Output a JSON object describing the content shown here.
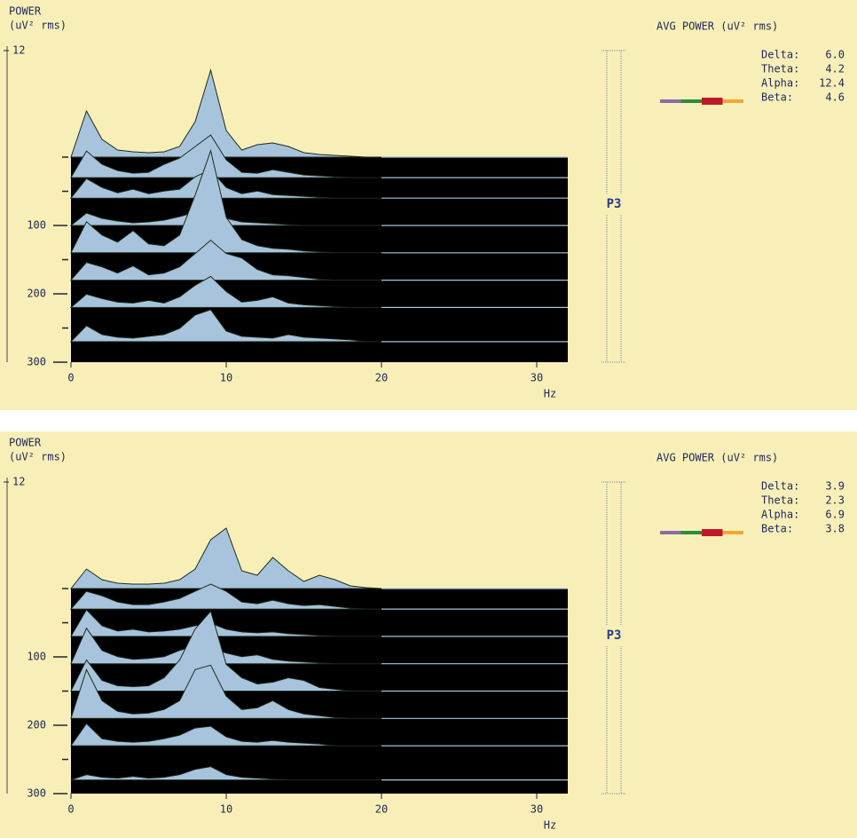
{
  "chart_data": [
    {
      "type": "waterfall",
      "zlabel": "POWER",
      "zunit": "(uV² rms)",
      "xlabel": "Hz",
      "channel": "P3",
      "legend_title": "AVG POWER (uV² rms)",
      "bands": {
        "names": [
          "Delta:",
          "Theta:",
          "Alpha:",
          "Beta:"
        ],
        "values": [
          6.0,
          4.2,
          12.4,
          4.6
        ],
        "value_labels": [
          "6.0",
          "4.2",
          "12.4",
          "4.6"
        ],
        "colors": [
          "#8a6aa8",
          "#2e8b3a",
          "#c0182a",
          "#f0a830"
        ]
      },
      "xlim": [
        0,
        32
      ],
      "xticks": [
        0,
        10,
        20,
        30
      ],
      "ylim": [
        0,
        300
      ],
      "yticks": [
        100,
        200,
        300
      ],
      "minor_yticks": [
        0,
        50,
        150,
        250
      ],
      "zticks": [
        12
      ],
      "color": "#a8c4dc",
      "background": "#000000",
      "x": [
        0,
        1,
        2,
        3,
        4,
        5,
        6,
        7,
        8,
        9,
        10,
        11,
        12,
        13,
        14,
        15,
        16,
        17,
        18,
        19,
        20
      ],
      "series": [
        {
          "time": 0,
          "values": [
            0,
            5.2,
            2.0,
            0.8,
            0.6,
            0.5,
            0.6,
            1.2,
            4.0,
            9.8,
            3.0,
            0.8,
            1.4,
            1.6,
            1.2,
            0.5,
            0.3,
            0.2,
            0.1,
            0,
            0
          ]
        },
        {
          "time": 30,
          "values": [
            0,
            3.0,
            1.5,
            0.8,
            0.5,
            0.6,
            1.5,
            2.2,
            3.5,
            4.8,
            2.0,
            0.6,
            0.5,
            0.9,
            0.6,
            0.3,
            0.2,
            0.1,
            0,
            0,
            0
          ]
        },
        {
          "time": 60,
          "values": [
            0,
            2.2,
            1.2,
            0.6,
            1.0,
            0.5,
            0.8,
            1.0,
            2.4,
            3.2,
            1.2,
            0.5,
            0.8,
            0.4,
            0.3,
            0.2,
            0.1,
            0,
            0,
            0,
            0
          ]
        },
        {
          "time": 100,
          "values": [
            0,
            1.4,
            0.8,
            0.5,
            0.3,
            0.4,
            0.6,
            1.0,
            1.5,
            1.8,
            0.8,
            0.4,
            0.3,
            0.2,
            0.1,
            0,
            0,
            0,
            0,
            0,
            0
          ]
        },
        {
          "time": 140,
          "values": [
            0,
            3.5,
            2.0,
            1.2,
            2.5,
            1.0,
            0.8,
            2.0,
            6.5,
            11.5,
            4.0,
            1.5,
            0.8,
            0.5,
            0.4,
            0.2,
            0.1,
            0,
            0,
            0,
            0
          ]
        },
        {
          "time": 180,
          "values": [
            0,
            2.0,
            1.5,
            0.8,
            1.6,
            0.6,
            0.8,
            1.5,
            3.0,
            4.5,
            3.0,
            2.5,
            1.2,
            0.6,
            0.5,
            0.3,
            0.1,
            0,
            0,
            0,
            0
          ]
        },
        {
          "time": 220,
          "values": [
            0,
            1.5,
            1.0,
            0.6,
            0.5,
            0.8,
            0.5,
            1.2,
            2.5,
            3.5,
            1.8,
            0.6,
            0.8,
            1.2,
            0.5,
            0.3,
            0.2,
            0.1,
            0,
            0,
            0
          ]
        },
        {
          "time": 270,
          "values": [
            0,
            1.8,
            0.8,
            0.5,
            0.4,
            0.6,
            0.8,
            1.5,
            3.0,
            3.6,
            1.2,
            0.6,
            0.5,
            0.4,
            0.8,
            0.5,
            0.4,
            0.3,
            0.2,
            0,
            0
          ]
        }
      ]
    },
    {
      "type": "waterfall",
      "zlabel": "POWER",
      "zunit": "(uV² rms)",
      "xlabel": "Hz",
      "channel": "P3",
      "legend_title": "AVG POWER (uV² rms)",
      "bands": {
        "names": [
          "Delta:",
          "Theta:",
          "Alpha:",
          "Beta:"
        ],
        "values": [
          3.9,
          2.3,
          6.9,
          3.8
        ],
        "value_labels": [
          "3.9",
          "2.3",
          "6.9",
          "3.8"
        ],
        "colors": [
          "#8a6aa8",
          "#2e8b3a",
          "#c0182a",
          "#f0a830"
        ]
      },
      "xlim": [
        0,
        32
      ],
      "xticks": [
        0,
        10,
        20,
        30
      ],
      "ylim": [
        0,
        300
      ],
      "yticks": [
        100,
        200,
        300
      ],
      "minor_yticks": [
        0,
        50,
        150,
        250
      ],
      "zticks": [
        12
      ],
      "color": "#a8c4dc",
      "background": "#000000",
      "x": [
        0,
        1,
        2,
        3,
        4,
        5,
        6,
        7,
        8,
        9,
        10,
        11,
        12,
        13,
        14,
        15,
        16,
        17,
        18,
        19,
        20
      ],
      "series": [
        {
          "time": 0,
          "values": [
            0,
            2.2,
            1.0,
            0.6,
            0.5,
            0.5,
            0.6,
            1.0,
            2.2,
            5.5,
            6.8,
            2.0,
            1.5,
            3.5,
            2.0,
            0.8,
            1.5,
            1.0,
            0.3,
            0.1,
            0
          ]
        },
        {
          "time": 30,
          "values": [
            0,
            2.0,
            1.5,
            0.8,
            0.5,
            0.5,
            0.8,
            1.2,
            2.0,
            2.8,
            2.0,
            0.8,
            0.6,
            1.0,
            0.6,
            0.4,
            0.5,
            0.3,
            0.1,
            0,
            0
          ]
        },
        {
          "time": 70,
          "values": [
            0,
            3.0,
            1.2,
            0.6,
            0.8,
            0.5,
            0.6,
            0.8,
            1.2,
            1.5,
            0.8,
            0.5,
            0.4,
            0.5,
            0.3,
            0.2,
            0.1,
            0,
            0,
            0,
            0
          ]
        },
        {
          "time": 110,
          "values": [
            0,
            4.0,
            1.5,
            0.8,
            0.5,
            0.6,
            0.8,
            1.5,
            2.0,
            1.8,
            1.2,
            0.8,
            1.0,
            0.5,
            0.3,
            0.2,
            0.1,
            0,
            0,
            0,
            0
          ]
        },
        {
          "time": 150,
          "values": [
            0,
            3.5,
            1.2,
            0.6,
            0.5,
            0.6,
            1.5,
            3.5,
            7.0,
            9.0,
            3.0,
            1.5,
            0.8,
            1.0,
            1.5,
            1.2,
            0.4,
            0.2,
            0,
            0,
            0
          ]
        },
        {
          "time": 190,
          "values": [
            0,
            5.5,
            2.0,
            0.8,
            0.5,
            0.6,
            1.0,
            2.0,
            5.5,
            6.0,
            2.5,
            1.0,
            1.2,
            2.0,
            1.0,
            0.5,
            0.3,
            0.1,
            0,
            0,
            0
          ]
        },
        {
          "time": 230,
          "values": [
            0,
            2.5,
            0.8,
            0.5,
            0.4,
            0.5,
            0.8,
            1.2,
            2.0,
            2.2,
            1.0,
            0.5,
            0.4,
            0.6,
            0.4,
            0.3,
            0.2,
            0,
            0,
            0,
            0
          ]
        },
        {
          "time": 280,
          "values": [
            0,
            0.6,
            0.3,
            0.2,
            0.4,
            0.2,
            0.3,
            0.6,
            1.2,
            1.5,
            0.6,
            0.3,
            0.2,
            0.1,
            0,
            0,
            0,
            0,
            0,
            0,
            0
          ]
        }
      ]
    }
  ]
}
